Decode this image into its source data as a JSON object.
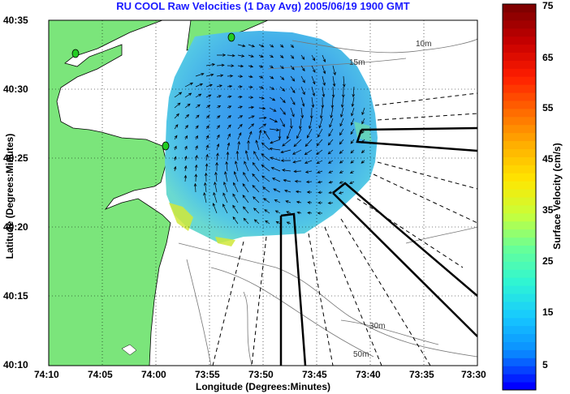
{
  "title": "RU COOL Raw Velocities (1 Day Avg) 2005/06/19 1900 GMT",
  "axes": {
    "xlabel": "Longitude (Degrees:Minutes)",
    "ylabel": "Latitude (Degrees:Minutes)",
    "x_ticks": [
      "74:10",
      "74:05",
      "74:00",
      "73:55",
      "73:50",
      "73:45",
      "73:40",
      "73:35",
      "73:30"
    ],
    "y_ticks": [
      "40:35",
      "40:30",
      "40:25",
      "40:20",
      "40:15",
      "40:10"
    ]
  },
  "colorbar": {
    "label": "Surface Velocity (cm/s)",
    "ticks": [
      "75",
      "65",
      "55",
      "45",
      "35",
      "25",
      "15",
      "5"
    ],
    "range": [
      0,
      75
    ],
    "colors": [
      "#0000ff",
      "#0a8cff",
      "#17c8ff",
      "#2ef5d5",
      "#66ff99",
      "#c8ff3a",
      "#ffe600",
      "#ffb000",
      "#ff6a00",
      "#ff1e00",
      "#c80000",
      "#800000"
    ]
  },
  "contours": [
    {
      "label": "10m"
    },
    {
      "label": "15m"
    },
    {
      "label": "30m"
    },
    {
      "label": "50m"
    }
  ],
  "colors": {
    "land": "#7be57b",
    "title": "#1a1aff",
    "field_main": "#3ea8ec",
    "field_edge": "#58d6e8",
    "station": "#22cc22"
  }
}
